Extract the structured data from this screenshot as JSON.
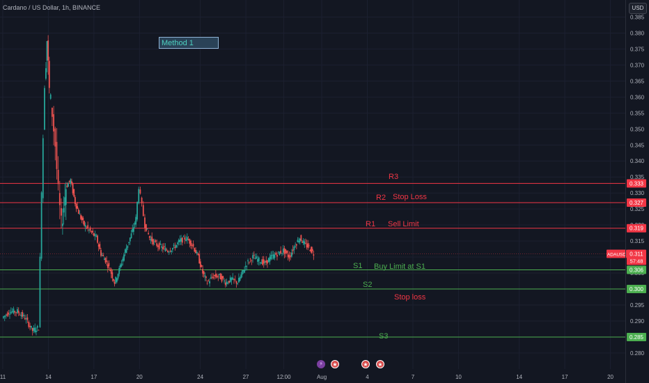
{
  "header": {
    "title": "Cardano / US Dollar, 1h, BINANCE",
    "currency": "USD"
  },
  "annotation_box": {
    "label": "Method 1"
  },
  "annotations": [
    {
      "text": "R3",
      "color": "#f23645"
    },
    {
      "text": "R2",
      "color": "#f23645"
    },
    {
      "text": "Stop Loss",
      "color": "#f23645"
    },
    {
      "text": "R1",
      "color": "#f23645"
    },
    {
      "text": "Sell Limit",
      "color": "#f23645"
    },
    {
      "text": "S1",
      "color": "#4caf50"
    },
    {
      "text": "Buy Limit at S1",
      "color": "#4caf50"
    },
    {
      "text": "S2",
      "color": "#4caf50"
    },
    {
      "text": "Stop loss",
      "color": "#f23645"
    },
    {
      "text": "S3",
      "color": "#4caf50"
    }
  ],
  "events": [
    {
      "icon": "lightning-icon"
    },
    {
      "icon": "us-flag-icon"
    },
    {
      "icon": "us-flag-icon"
    },
    {
      "icon": "us-flag-icon"
    }
  ],
  "chart_data": {
    "type": "candlestick",
    "symbol": "ADAUSD",
    "interval": "1h",
    "exchange": "BINANCE",
    "ylim": [
      0.2765,
      0.3875
    ],
    "yticks": [
      0.28,
      0.285,
      0.29,
      0.295,
      0.3,
      0.305,
      0.31,
      0.315,
      0.32,
      0.325,
      0.33,
      0.335,
      0.34,
      0.345,
      0.35,
      0.355,
      0.36,
      0.365,
      0.37,
      0.375,
      0.38,
      0.385
    ],
    "xticks": [
      {
        "label": "11",
        "t": 0.5
      },
      {
        "label": "14",
        "t": 3.5
      },
      {
        "label": "17",
        "t": 6.5
      },
      {
        "label": "20",
        "t": 9.5
      },
      {
        "label": "24",
        "t": 13.5
      },
      {
        "label": "27",
        "t": 16.5
      },
      {
        "label": "12:00",
        "t": 19
      },
      {
        "label": "Aug",
        "t": 21.5
      },
      {
        "label": "4",
        "t": 24.5
      },
      {
        "label": "7",
        "t": 27.5
      },
      {
        "label": "10",
        "t": 30.5
      },
      {
        "label": "14",
        "t": 34.5
      },
      {
        "label": "17",
        "t": 37.5
      },
      {
        "label": "20",
        "t": 40.5
      }
    ],
    "xlim": [
      0.5,
      41.3
    ],
    "levels": [
      {
        "name": "R3",
        "price": 0.333,
        "color": "#f23645",
        "label": "0.333"
      },
      {
        "name": "R2",
        "price": 0.327,
        "color": "#f23645",
        "label": "0.327"
      },
      {
        "name": "R1",
        "price": 0.319,
        "color": "#f23645",
        "label": "0.319"
      },
      {
        "name": "S1",
        "price": 0.306,
        "color": "#4caf50",
        "label": "0.306"
      },
      {
        "name": "S2",
        "price": 0.3,
        "color": "#4caf50",
        "label": "0.300"
      },
      {
        "name": "S3",
        "price": 0.285,
        "color": "#4caf50",
        "label": "0.285"
      }
    ],
    "current_price": {
      "label": "ADAUSD",
      "value": "0.311",
      "countdown": "57:48",
      "price": 0.311
    },
    "close_series": [
      {
        "t": 0.5,
        "v": 0.291
      },
      {
        "t": 1.0,
        "v": 0.293
      },
      {
        "t": 1.5,
        "v": 0.293
      },
      {
        "t": 2.0,
        "v": 0.291
      },
      {
        "t": 2.5,
        "v": 0.287
      },
      {
        "t": 2.9,
        "v": 0.288
      },
      {
        "t": 3.1,
        "v": 0.331
      },
      {
        "t": 3.3,
        "v": 0.365
      },
      {
        "t": 3.45,
        "v": 0.378
      },
      {
        "t": 3.6,
        "v": 0.362
      },
      {
        "t": 3.8,
        "v": 0.355
      },
      {
        "t": 4.0,
        "v": 0.345
      },
      {
        "t": 4.2,
        "v": 0.33
      },
      {
        "t": 4.4,
        "v": 0.32
      },
      {
        "t": 4.7,
        "v": 0.332
      },
      {
        "t": 5.0,
        "v": 0.334
      },
      {
        "t": 5.3,
        "v": 0.327
      },
      {
        "t": 5.6,
        "v": 0.323
      },
      {
        "t": 5.9,
        "v": 0.32
      },
      {
        "t": 6.3,
        "v": 0.318
      },
      {
        "t": 6.7,
        "v": 0.316
      },
      {
        "t": 7.0,
        "v": 0.311
      },
      {
        "t": 7.3,
        "v": 0.309
      },
      {
        "t": 7.6,
        "v": 0.306
      },
      {
        "t": 7.9,
        "v": 0.302
      },
      {
        "t": 8.2,
        "v": 0.306
      },
      {
        "t": 8.6,
        "v": 0.312
      },
      {
        "t": 9.0,
        "v": 0.317
      },
      {
        "t": 9.3,
        "v": 0.322
      },
      {
        "t": 9.5,
        "v": 0.332
      },
      {
        "t": 9.7,
        "v": 0.326
      },
      {
        "t": 9.9,
        "v": 0.32
      },
      {
        "t": 10.2,
        "v": 0.316
      },
      {
        "t": 10.6,
        "v": 0.314
      },
      {
        "t": 11.0,
        "v": 0.313
      },
      {
        "t": 11.4,
        "v": 0.312
      },
      {
        "t": 11.8,
        "v": 0.313
      },
      {
        "t": 12.2,
        "v": 0.315
      },
      {
        "t": 12.6,
        "v": 0.316
      },
      {
        "t": 13.0,
        "v": 0.314
      },
      {
        "t": 13.4,
        "v": 0.31
      },
      {
        "t": 13.7,
        "v": 0.305
      },
      {
        "t": 14.0,
        "v": 0.302
      },
      {
        "t": 14.4,
        "v": 0.304
      },
      {
        "t": 14.8,
        "v": 0.304
      },
      {
        "t": 15.2,
        "v": 0.302
      },
      {
        "t": 15.6,
        "v": 0.303
      },
      {
        "t": 16.0,
        "v": 0.302
      },
      {
        "t": 16.3,
        "v": 0.305
      },
      {
        "t": 16.6,
        "v": 0.308
      },
      {
        "t": 17.0,
        "v": 0.31
      },
      {
        "t": 17.4,
        "v": 0.309
      },
      {
        "t": 17.8,
        "v": 0.308
      },
      {
        "t": 18.2,
        "v": 0.31
      },
      {
        "t": 18.6,
        "v": 0.311
      },
      {
        "t": 19.0,
        "v": 0.312
      },
      {
        "t": 19.4,
        "v": 0.31
      },
      {
        "t": 19.8,
        "v": 0.314
      },
      {
        "t": 20.1,
        "v": 0.316
      },
      {
        "t": 20.4,
        "v": 0.314
      },
      {
        "t": 20.7,
        "v": 0.313
      },
      {
        "t": 21.0,
        "v": 0.311
      }
    ]
  }
}
